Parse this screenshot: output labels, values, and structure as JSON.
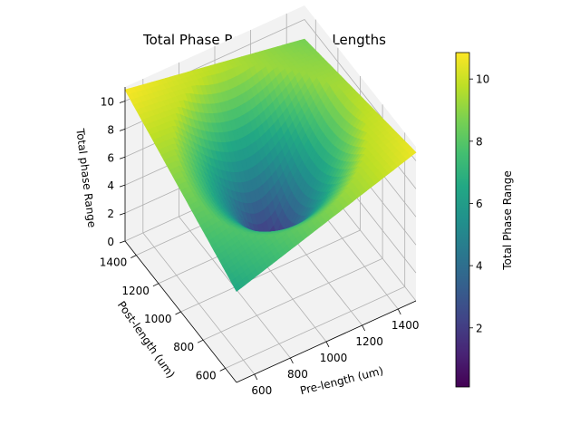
{
  "chart_data": {
    "type": "surface3d",
    "title": "Total Phase Range vs YVO4 Lengths",
    "xlabel": "Pre-length (um)",
    "ylabel": "Post-length (um)",
    "zlabel": "Total phase Range",
    "colorbar_label": "Total Phase Range",
    "colormap": "viridis",
    "x_ticks": [
      "600",
      "800",
      "1000",
      "1200",
      "1400"
    ],
    "y_ticks": [
      "600",
      "800",
      "1000",
      "1200",
      "1400"
    ],
    "z_ticks": [
      "0",
      "2",
      "4",
      "6",
      "8",
      "10"
    ],
    "colorbar_ticks": [
      "2",
      "4",
      "6",
      "8",
      "10"
    ],
    "xlim": [
      500,
      1500
    ],
    "ylim": [
      500,
      1500
    ],
    "zlim": [
      0,
      11
    ],
    "colorbar_range": [
      0.1,
      10.85
    ],
    "surface_points": [
      {
        "x": 1000,
        "y": 1000,
        "z": 0.5
      },
      {
        "x": 500,
        "y": 1500,
        "z": 10.8
      },
      {
        "x": 1500,
        "y": 500,
        "z": 10.6
      },
      {
        "x": 500,
        "y": 500,
        "z": 6.5
      },
      {
        "x": 1500,
        "y": 1500,
        "z": 8.6
      }
    ],
    "grid": true
  },
  "colors": {
    "pane": "#f2f2f2",
    "grid": "#b0b0b0"
  }
}
